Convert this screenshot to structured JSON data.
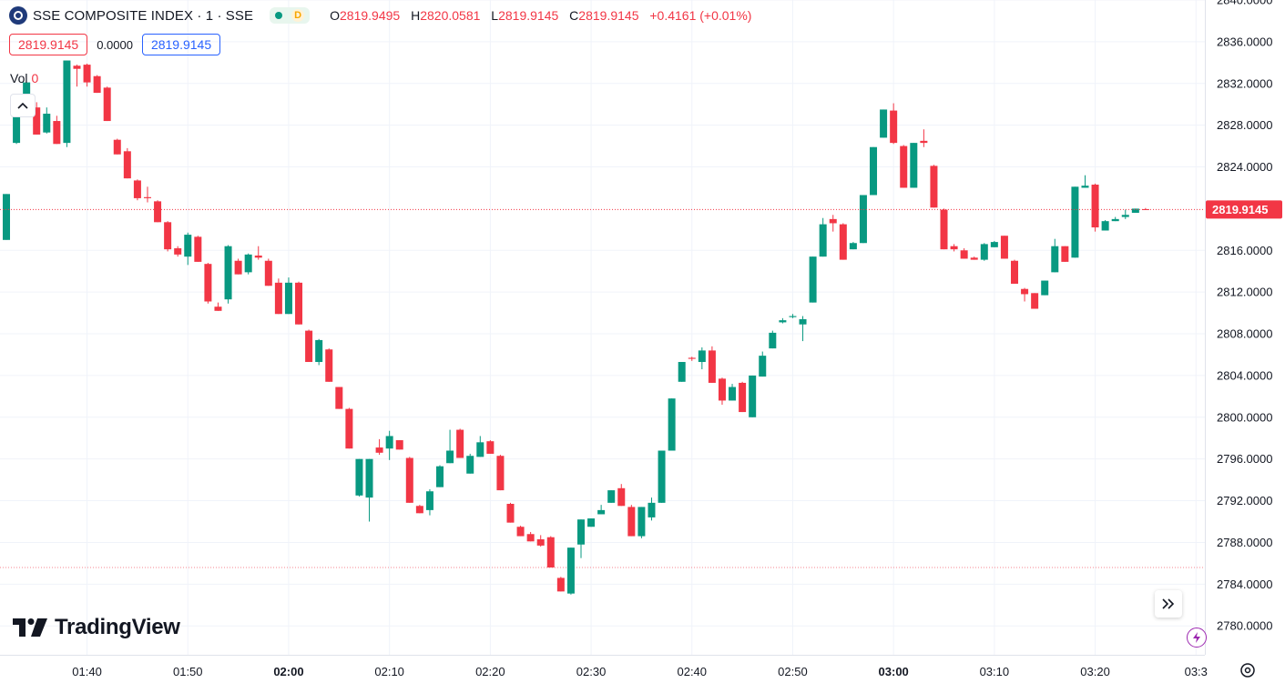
{
  "legend": {
    "symbol": "SSE COMPOSITE INDEX · 1 · SSE",
    "status_letter": "D",
    "o_label": "O",
    "o_value": "2819.9495",
    "h_label": "H",
    "h_value": "2820.0581",
    "l_label": "L",
    "l_value": "2819.9145",
    "c_label": "C",
    "c_value": "2819.9145",
    "change": "+0.4161 (+0.01%)",
    "sell_price": "2819.9145",
    "spread": "0.0000",
    "buy_price": "2819.9145",
    "vol_label": "Vol",
    "vol_value": "0"
  },
  "brand": {
    "name": "TradingView"
  },
  "icons": {
    "symbol_logo": "sse-logo-icon",
    "market_status": "market-open-dot-icon",
    "collapse": "chevron-up-icon",
    "go_to_realtime": "double-chevron-right-icon",
    "settings": "gear-icon",
    "lightning": "lightning-icon"
  },
  "colors": {
    "up": "#089981",
    "down": "#f23645",
    "price_line": "#f23645",
    "grid": "#f0f3fa"
  },
  "chart_data": {
    "type": "candlestick",
    "title": "SSE COMPOSITE INDEX · 1 · SSE",
    "interval": "1 minute",
    "ylim": [
      2778.0,
      2841.0
    ],
    "y_ticks": [
      "2840.0000",
      "2836.0000",
      "2832.0000",
      "2828.0000",
      "2824.0000",
      "2816.0000",
      "2812.0000",
      "2808.0000",
      "2804.0000",
      "2800.0000",
      "2796.0000",
      "2792.0000",
      "2788.0000",
      "2784.0000",
      "2780.0000"
    ],
    "x_ticks": [
      {
        "label": "01:40",
        "bar": 8,
        "bold": false
      },
      {
        "label": "01:50",
        "bar": 18,
        "bold": false
      },
      {
        "label": "02:00",
        "bar": 28,
        "bold": true
      },
      {
        "label": "02:10",
        "bar": 38,
        "bold": false
      },
      {
        "label": "02:20",
        "bar": 48,
        "bold": false
      },
      {
        "label": "02:30",
        "bar": 58,
        "bold": false
      },
      {
        "label": "02:40",
        "bar": 68,
        "bold": false
      },
      {
        "label": "02:50",
        "bar": 78,
        "bold": false
      },
      {
        "label": "03:00",
        "bar": 88,
        "bold": true
      },
      {
        "label": "03:10",
        "bar": 98,
        "bold": false
      },
      {
        "label": "03:20",
        "bar": 108,
        "bold": false
      },
      {
        "label": "03:3",
        "bar": 118,
        "bold": false
      }
    ],
    "last_price": 2819.9145,
    "last_price_label": "2819.9145",
    "reference_level": 2785.6,
    "ohlc": [
      [
        2817.0,
        2821.4,
        2817.0,
        2821.4
      ],
      [
        2826.3,
        2830.2,
        2826.2,
        2830.1
      ],
      [
        2830.1,
        2832.1,
        2830.1,
        2832.1
      ],
      [
        2829.7,
        2830.2,
        2827.1,
        2827.1
      ],
      [
        2827.3,
        2829.7,
        2827.2,
        2829.1
      ],
      [
        2828.4,
        2828.9,
        2826.2,
        2826.2
      ],
      [
        2826.3,
        2834.2,
        2825.9,
        2834.2
      ],
      [
        2833.7,
        2833.8,
        2831.7,
        2833.4
      ],
      [
        2833.8,
        2833.9,
        2831.7,
        2832.1
      ],
      [
        2832.7,
        2832.8,
        2831.1,
        2831.1
      ],
      [
        2831.6,
        2831.7,
        2828.4,
        2828.4
      ],
      [
        2826.6,
        2826.7,
        2825.2,
        2825.2
      ],
      [
        2825.5,
        2825.8,
        2822.9,
        2822.9
      ],
      [
        2822.7,
        2822.8,
        2820.8,
        2821.0
      ],
      [
        2821.1,
        2822.1,
        2820.6,
        2821.0
      ],
      [
        2820.7,
        2820.8,
        2818.7,
        2818.7
      ],
      [
        2818.7,
        2818.8,
        2815.9,
        2816.1
      ],
      [
        2816.2,
        2816.4,
        2815.4,
        2815.6
      ],
      [
        2815.4,
        2817.7,
        2814.6,
        2817.5
      ],
      [
        2817.3,
        2817.4,
        2814.9,
        2814.9
      ],
      [
        2814.7,
        2814.8,
        2810.9,
        2811.1
      ],
      [
        2810.6,
        2811.0,
        2810.2,
        2810.2
      ],
      [
        2811.3,
        2816.5,
        2810.9,
        2816.4
      ],
      [
        2815.0,
        2815.2,
        2813.7,
        2813.7
      ],
      [
        2813.9,
        2815.7,
        2813.7,
        2815.6
      ],
      [
        2815.5,
        2816.4,
        2815.1,
        2815.3
      ],
      [
        2815.0,
        2815.2,
        2812.6,
        2812.6
      ],
      [
        2812.9,
        2813.3,
        2809.9,
        2809.9
      ],
      [
        2809.9,
        2813.4,
        2809.9,
        2812.9
      ],
      [
        2812.9,
        2813.0,
        2808.9,
        2808.9
      ],
      [
        2808.3,
        2808.4,
        2805.3,
        2805.3
      ],
      [
        2805.3,
        2807.5,
        2805.0,
        2807.4
      ],
      [
        2806.5,
        2806.6,
        2803.4,
        2803.4
      ],
      [
        2802.9,
        2802.9,
        2800.8,
        2800.8
      ],
      [
        2800.8,
        2800.9,
        2797.0,
        2797.0
      ],
      [
        2792.5,
        2796.0,
        2792.4,
        2796.0
      ],
      [
        2792.3,
        2796.0,
        2790.0,
        2796.0
      ],
      [
        2797.1,
        2797.9,
        2796.4,
        2796.6
      ],
      [
        2797.0,
        2798.7,
        2795.9,
        2798.2
      ],
      [
        2797.8,
        2797.8,
        2796.9,
        2796.9
      ],
      [
        2796.1,
        2796.2,
        2791.8,
        2791.8
      ],
      [
        2791.5,
        2791.6,
        2790.8,
        2790.8
      ],
      [
        2791.1,
        2793.1,
        2790.6,
        2792.9
      ],
      [
        2793.3,
        2795.4,
        2793.3,
        2795.3
      ],
      [
        2795.6,
        2798.8,
        2795.6,
        2796.8
      ],
      [
        2798.8,
        2798.9,
        2796.1,
        2796.1
      ],
      [
        2794.6,
        2796.5,
        2794.6,
        2796.3
      ],
      [
        2796.2,
        2798.2,
        2796.2,
        2797.6
      ],
      [
        2797.7,
        2797.8,
        2796.5,
        2796.5
      ],
      [
        2796.3,
        2796.4,
        2793.0,
        2793.0
      ],
      [
        2791.7,
        2791.8,
        2789.9,
        2789.9
      ],
      [
        2789.5,
        2789.6,
        2788.6,
        2788.6
      ],
      [
        2788.8,
        2789.0,
        2788.1,
        2788.1
      ],
      [
        2788.3,
        2788.7,
        2787.6,
        2787.7
      ],
      [
        2788.5,
        2788.6,
        2785.6,
        2785.6
      ],
      [
        2784.6,
        2784.7,
        2783.3,
        2783.3
      ],
      [
        2783.1,
        2787.5,
        2783.0,
        2787.5
      ],
      [
        2787.8,
        2790.2,
        2786.5,
        2790.2
      ],
      [
        2789.5,
        2790.3,
        2789.5,
        2790.3
      ],
      [
        2790.7,
        2791.6,
        2790.7,
        2791.1
      ],
      [
        2791.8,
        2793.0,
        2791.8,
        2793.0
      ],
      [
        2793.2,
        2793.6,
        2791.5,
        2791.5
      ],
      [
        2791.4,
        2791.6,
        2788.6,
        2788.6
      ],
      [
        2788.6,
        2791.4,
        2788.4,
        2791.4
      ],
      [
        2790.4,
        2792.3,
        2790.1,
        2791.8
      ],
      [
        2791.8,
        2796.8,
        2791.8,
        2796.8
      ],
      [
        2796.8,
        2801.8,
        2796.8,
        2801.8
      ],
      [
        2803.4,
        2805.3,
        2803.4,
        2805.3
      ],
      [
        2805.7,
        2805.8,
        2805.4,
        2805.6
      ],
      [
        2805.3,
        2806.7,
        2804.6,
        2806.4
      ],
      [
        2806.4,
        2806.8,
        2803.3,
        2803.3
      ],
      [
        2803.7,
        2803.8,
        2801.2,
        2801.6
      ],
      [
        2801.6,
        2803.2,
        2801.6,
        2802.9
      ],
      [
        2803.3,
        2803.4,
        2800.5,
        2800.5
      ],
      [
        2800.0,
        2804.0,
        2800.0,
        2804.0
      ],
      [
        2803.9,
        2806.3,
        2803.9,
        2805.9
      ],
      [
        2806.6,
        2808.3,
        2806.6,
        2808.1
      ],
      [
        2809.1,
        2809.5,
        2809.0,
        2809.3
      ],
      [
        2809.6,
        2809.9,
        2809.5,
        2809.7
      ],
      [
        2808.9,
        2809.7,
        2807.3,
        2809.4
      ],
      [
        2811.0,
        2815.4,
        2811.0,
        2815.4
      ],
      [
        2815.4,
        2819.1,
        2815.4,
        2818.5
      ],
      [
        2819.0,
        2819.4,
        2817.8,
        2818.6
      ],
      [
        2818.5,
        2818.6,
        2815.1,
        2815.1
      ],
      [
        2816.1,
        2816.8,
        2816.1,
        2816.7
      ],
      [
        2816.7,
        2821.3,
        2816.7,
        2821.3
      ],
      [
        2821.3,
        2825.9,
        2821.3,
        2825.9
      ],
      [
        2826.8,
        2829.5,
        2826.8,
        2829.5
      ],
      [
        2829.4,
        2830.1,
        2826.2,
        2826.3
      ],
      [
        2826.0,
        2826.1,
        2822.0,
        2822.0
      ],
      [
        2822.0,
        2826.3,
        2822.0,
        2826.3
      ],
      [
        2826.5,
        2827.6,
        2825.9,
        2826.3
      ],
      [
        2824.1,
        2824.2,
        2820.1,
        2820.1
      ],
      [
        2819.9,
        2820.0,
        2816.1,
        2816.1
      ],
      [
        2816.4,
        2816.6,
        2815.9,
        2816.1
      ],
      [
        2816.0,
        2816.2,
        2815.2,
        2815.2
      ],
      [
        2815.3,
        2815.4,
        2815.1,
        2815.1
      ],
      [
        2815.1,
        2816.7,
        2815.0,
        2816.6
      ],
      [
        2816.3,
        2816.9,
        2816.3,
        2816.8
      ],
      [
        2817.4,
        2817.4,
        2815.2,
        2815.2
      ],
      [
        2815.0,
        2815.1,
        2812.8,
        2812.8
      ],
      [
        2812.3,
        2812.4,
        2811.1,
        2811.8
      ],
      [
        2811.9,
        2811.9,
        2810.4,
        2810.4
      ],
      [
        2811.7,
        2813.1,
        2811.7,
        2813.1
      ],
      [
        2813.9,
        2817.1,
        2813.9,
        2816.4
      ],
      [
        2816.4,
        2816.4,
        2814.9,
        2814.9
      ],
      [
        2815.3,
        2822.1,
        2815.3,
        2822.1
      ],
      [
        2822.0,
        2823.2,
        2822.0,
        2822.2
      ],
      [
        2822.3,
        2822.4,
        2817.8,
        2818.2
      ],
      [
        2817.9,
        2818.9,
        2817.9,
        2818.8
      ],
      [
        2818.8,
        2819.2,
        2818.8,
        2819.0
      ],
      [
        2819.2,
        2819.9,
        2819.0,
        2819.4
      ],
      [
        2819.6,
        2820.0,
        2819.6,
        2820.0
      ],
      [
        2819.95,
        2820.06,
        2819.91,
        2819.91
      ]
    ]
  }
}
